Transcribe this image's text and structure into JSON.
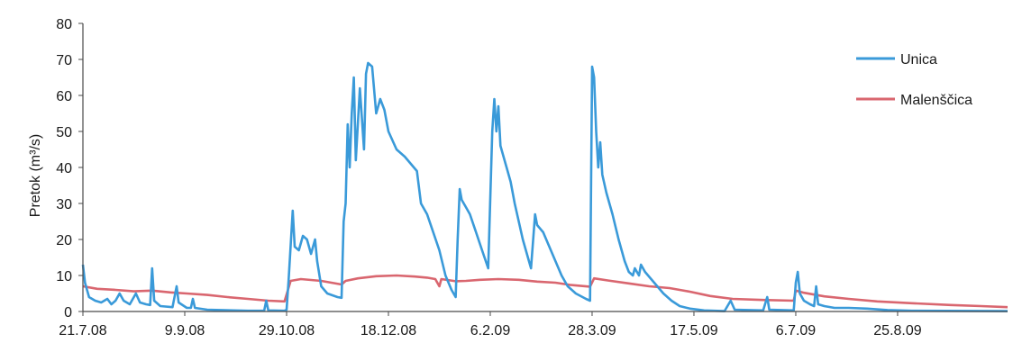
{
  "chart_data": {
    "type": "line",
    "ylabel": "Pretok (m³/s)",
    "ylim": [
      0,
      80
    ],
    "yticks": [
      0,
      10,
      20,
      30,
      40,
      50,
      60,
      70,
      80
    ],
    "xlim": [
      "2008-07-21",
      "2009-10-18"
    ],
    "xticks": [
      {
        "date": "2008-07-21",
        "label": "21.7.08"
      },
      {
        "date": "2008-09-09",
        "label": "9.9.08"
      },
      {
        "date": "2008-10-29",
        "label": "29.10.08"
      },
      {
        "date": "2008-12-18",
        "label": "18.12.08"
      },
      {
        "date": "2009-02-06",
        "label": "6.2.09"
      },
      {
        "date": "2009-03-28",
        "label": "28.3.09"
      },
      {
        "date": "2009-05-17",
        "label": "17.5.09"
      },
      {
        "date": "2009-07-06",
        "label": "6.7.09"
      },
      {
        "date": "2009-08-25",
        "label": "25.8.09"
      }
    ],
    "legend_position": "right",
    "grid": false,
    "series": [
      {
        "name": "Unica",
        "color": "#3a9ad9",
        "points": [
          [
            "2008-07-21",
            13
          ],
          [
            "2008-07-22",
            8
          ],
          [
            "2008-07-24",
            4
          ],
          [
            "2008-07-27",
            3
          ],
          [
            "2008-07-30",
            2.5
          ],
          [
            "2008-08-02",
            3.5
          ],
          [
            "2008-08-04",
            2
          ],
          [
            "2008-08-06",
            3
          ],
          [
            "2008-08-08",
            5
          ],
          [
            "2008-08-10",
            3
          ],
          [
            "2008-08-13",
            2
          ],
          [
            "2008-08-16",
            5
          ],
          [
            "2008-08-18",
            2.5
          ],
          [
            "2008-08-21",
            2
          ],
          [
            "2008-08-23",
            1.8
          ],
          [
            "2008-08-24",
            12
          ],
          [
            "2008-08-25",
            3
          ],
          [
            "2008-08-28",
            1.5
          ],
          [
            "2008-09-03",
            1.2
          ],
          [
            "2008-09-05",
            7
          ],
          [
            "2008-09-06",
            2.5
          ],
          [
            "2008-09-10",
            1
          ],
          [
            "2008-09-12",
            1
          ],
          [
            "2008-09-13",
            3.5
          ],
          [
            "2008-09-14",
            1
          ],
          [
            "2008-09-20",
            0.5
          ],
          [
            "2008-10-10",
            0.2
          ],
          [
            "2008-10-18",
            0.2
          ],
          [
            "2008-10-19",
            3
          ],
          [
            "2008-10-20",
            0.3
          ],
          [
            "2008-10-28",
            0.2
          ],
          [
            "2008-10-29",
            0.5
          ],
          [
            "2008-10-30",
            9
          ],
          [
            "2008-11-01",
            28
          ],
          [
            "2008-11-02",
            18
          ],
          [
            "2008-11-04",
            17
          ],
          [
            "2008-11-06",
            21
          ],
          [
            "2008-11-08",
            20
          ],
          [
            "2008-11-10",
            16
          ],
          [
            "2008-11-12",
            20
          ],
          [
            "2008-11-13",
            14
          ],
          [
            "2008-11-15",
            7
          ],
          [
            "2008-11-18",
            5
          ],
          [
            "2008-11-23",
            4
          ],
          [
            "2008-11-25",
            3.8
          ],
          [
            "2008-11-26",
            25
          ],
          [
            "2008-11-27",
            30
          ],
          [
            "2008-11-28",
            52
          ],
          [
            "2008-11-29",
            40
          ],
          [
            "2008-11-30",
            55
          ],
          [
            "2008-12-01",
            65
          ],
          [
            "2008-12-02",
            42
          ],
          [
            "2008-12-04",
            62
          ],
          [
            "2008-12-06",
            45
          ],
          [
            "2008-12-07",
            66
          ],
          [
            "2008-12-08",
            69
          ],
          [
            "2008-12-10",
            68
          ],
          [
            "2008-12-12",
            55
          ],
          [
            "2008-12-14",
            59
          ],
          [
            "2008-12-16",
            56
          ],
          [
            "2008-12-18",
            50
          ],
          [
            "2008-12-22",
            45
          ],
          [
            "2008-12-26",
            43
          ],
          [
            "2009-01-01",
            39
          ],
          [
            "2009-01-03",
            30
          ],
          [
            "2009-01-06",
            27
          ],
          [
            "2009-01-09",
            22
          ],
          [
            "2009-01-12",
            17
          ],
          [
            "2009-01-15",
            10
          ],
          [
            "2009-01-18",
            6
          ],
          [
            "2009-01-20",
            4
          ],
          [
            "2009-01-21",
            20
          ],
          [
            "2009-01-22",
            34
          ],
          [
            "2009-01-23",
            31
          ],
          [
            "2009-01-25",
            29
          ],
          [
            "2009-01-27",
            27
          ],
          [
            "2009-01-30",
            22
          ],
          [
            "2009-02-02",
            17
          ],
          [
            "2009-02-05",
            12
          ],
          [
            "2009-02-07",
            50
          ],
          [
            "2009-02-08",
            59
          ],
          [
            "2009-02-09",
            50
          ],
          [
            "2009-02-10",
            57
          ],
          [
            "2009-02-11",
            46
          ],
          [
            "2009-02-14",
            40
          ],
          [
            "2009-02-16",
            36
          ],
          [
            "2009-02-18",
            30
          ],
          [
            "2009-02-20",
            25
          ],
          [
            "2009-02-22",
            20
          ],
          [
            "2009-02-25",
            14
          ],
          [
            "2009-02-26",
            12
          ],
          [
            "2009-02-28",
            27
          ],
          [
            "2009-03-01",
            24
          ],
          [
            "2009-03-04",
            22
          ],
          [
            "2009-03-07",
            18
          ],
          [
            "2009-03-10",
            14
          ],
          [
            "2009-03-13",
            10
          ],
          [
            "2009-03-16",
            7
          ],
          [
            "2009-03-20",
            5
          ],
          [
            "2009-03-25",
            3.5
          ],
          [
            "2009-03-27",
            3
          ],
          [
            "2009-03-28",
            68
          ],
          [
            "2009-03-29",
            65
          ],
          [
            "2009-03-30",
            50
          ],
          [
            "2009-03-31",
            40
          ],
          [
            "2009-04-01",
            47
          ],
          [
            "2009-04-02",
            38
          ],
          [
            "2009-04-04",
            33
          ],
          [
            "2009-04-07",
            27
          ],
          [
            "2009-04-10",
            20
          ],
          [
            "2009-04-13",
            14
          ],
          [
            "2009-04-15",
            11
          ],
          [
            "2009-04-17",
            10
          ],
          [
            "2009-04-18",
            12
          ],
          [
            "2009-04-20",
            10
          ],
          [
            "2009-04-21",
            13
          ],
          [
            "2009-04-23",
            11
          ],
          [
            "2009-04-26",
            9
          ],
          [
            "2009-04-29",
            7
          ],
          [
            "2009-05-02",
            5
          ],
          [
            "2009-05-06",
            3
          ],
          [
            "2009-05-10",
            1.5
          ],
          [
            "2009-05-15",
            0.8
          ],
          [
            "2009-05-22",
            0.3
          ],
          [
            "2009-06-01",
            0.1
          ],
          [
            "2009-06-04",
            3
          ],
          [
            "2009-06-06",
            0.5
          ],
          [
            "2009-06-20",
            0.3
          ],
          [
            "2009-06-22",
            4
          ],
          [
            "2009-06-23",
            0.5
          ],
          [
            "2009-07-05",
            0.3
          ],
          [
            "2009-07-06",
            8
          ],
          [
            "2009-07-07",
            11
          ],
          [
            "2009-07-08",
            5
          ],
          [
            "2009-07-10",
            3
          ],
          [
            "2009-07-13",
            2
          ],
          [
            "2009-07-15",
            1.5
          ],
          [
            "2009-07-16",
            7
          ],
          [
            "2009-07-17",
            2
          ],
          [
            "2009-07-20",
            1.5
          ],
          [
            "2009-07-25",
            1
          ],
          [
            "2009-08-01",
            1
          ],
          [
            "2009-08-10",
            0.8
          ],
          [
            "2009-08-20",
            0.4
          ],
          [
            "2009-09-01",
            0.2
          ],
          [
            "2009-10-18",
            0.1
          ]
        ]
      },
      {
        "name": "Malenščica",
        "color": "#d9666f",
        "points": [
          [
            "2008-07-21",
            7
          ],
          [
            "2008-07-28",
            6.3
          ],
          [
            "2008-08-06",
            6
          ],
          [
            "2008-08-15",
            5.6
          ],
          [
            "2008-08-24",
            5.8
          ],
          [
            "2008-09-02",
            5.3
          ],
          [
            "2008-09-10",
            5
          ],
          [
            "2008-09-20",
            4.6
          ],
          [
            "2008-09-30",
            4
          ],
          [
            "2008-10-10",
            3.5
          ],
          [
            "2008-10-20",
            3
          ],
          [
            "2008-10-28",
            2.8
          ],
          [
            "2008-10-31",
            8.5
          ],
          [
            "2008-11-05",
            9
          ],
          [
            "2008-11-15",
            8.5
          ],
          [
            "2008-11-25",
            7.5
          ],
          [
            "2008-11-27",
            8.5
          ],
          [
            "2008-12-03",
            9.2
          ],
          [
            "2008-12-12",
            9.8
          ],
          [
            "2008-12-22",
            10
          ],
          [
            "2008-12-31",
            9.7
          ],
          [
            "2009-01-06",
            9.4
          ],
          [
            "2009-01-10",
            9
          ],
          [
            "2009-01-12",
            7
          ],
          [
            "2009-01-13",
            9
          ],
          [
            "2009-01-20",
            8.4
          ],
          [
            "2009-01-25",
            8.5
          ],
          [
            "2009-02-01",
            8.8
          ],
          [
            "2009-02-10",
            9
          ],
          [
            "2009-02-20",
            8.8
          ],
          [
            "2009-03-01",
            8.3
          ],
          [
            "2009-03-10",
            8
          ],
          [
            "2009-03-17",
            7.4
          ],
          [
            "2009-03-27",
            6.9
          ],
          [
            "2009-03-29",
            9.2
          ],
          [
            "2009-04-05",
            8.6
          ],
          [
            "2009-04-15",
            7.8
          ],
          [
            "2009-04-25",
            7
          ],
          [
            "2009-05-05",
            6.5
          ],
          [
            "2009-05-15",
            5.5
          ],
          [
            "2009-05-25",
            4.3
          ],
          [
            "2009-06-05",
            3.5
          ],
          [
            "2009-06-20",
            3.2
          ],
          [
            "2009-07-05",
            3
          ],
          [
            "2009-07-06",
            5.8
          ],
          [
            "2009-07-10",
            5.2
          ],
          [
            "2009-07-20",
            4.2
          ],
          [
            "2009-08-01",
            3.5
          ],
          [
            "2009-08-15",
            2.8
          ],
          [
            "2009-09-01",
            2.3
          ],
          [
            "2009-09-20",
            1.8
          ],
          [
            "2009-10-05",
            1.5
          ],
          [
            "2009-10-18",
            1.2
          ]
        ]
      }
    ]
  }
}
